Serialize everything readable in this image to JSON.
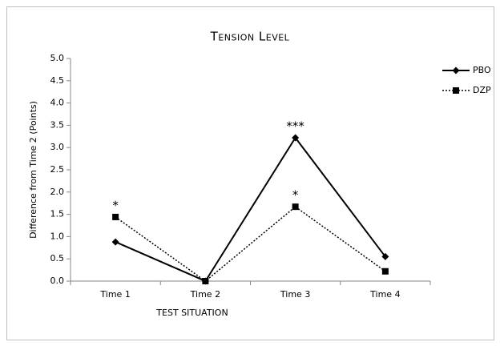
{
  "chart_data": {
    "type": "line",
    "title": "Tension Level",
    "xlabel": "TEST SITUATION",
    "ylabel": "Difference from Time 2 (Points)",
    "categories": [
      "Time 1",
      "Time 2",
      "Time 3",
      "Time 4"
    ],
    "series": [
      {
        "name": "PBO",
        "color": "#000000",
        "style": "solid",
        "marker": "diamond",
        "values": [
          0.88,
          0,
          3.22,
          0.55
        ]
      },
      {
        "name": "DZP",
        "color": "#000000",
        "style": "dotted",
        "marker": "square",
        "values": [
          1.44,
          0,
          1.67,
          0.22
        ]
      }
    ],
    "annotations": [
      "*",
      "***",
      "*"
    ],
    "ylim": [
      0,
      5
    ],
    "yticks": [
      {
        "value": 0,
        "label": "0.0"
      },
      0.5,
      {
        "value": 1,
        "label": "1.0"
      },
      1.5,
      {
        "value": 2,
        "label": "2.0"
      },
      2.5,
      {
        "value": 3,
        "label": "3.0"
      },
      3.5,
      {
        "value": 4,
        "label": "4.0"
      },
      4.5,
      {
        "value": 5,
        "label": "5.0"
      }
    ],
    "grid": false,
    "legend": "right"
  }
}
